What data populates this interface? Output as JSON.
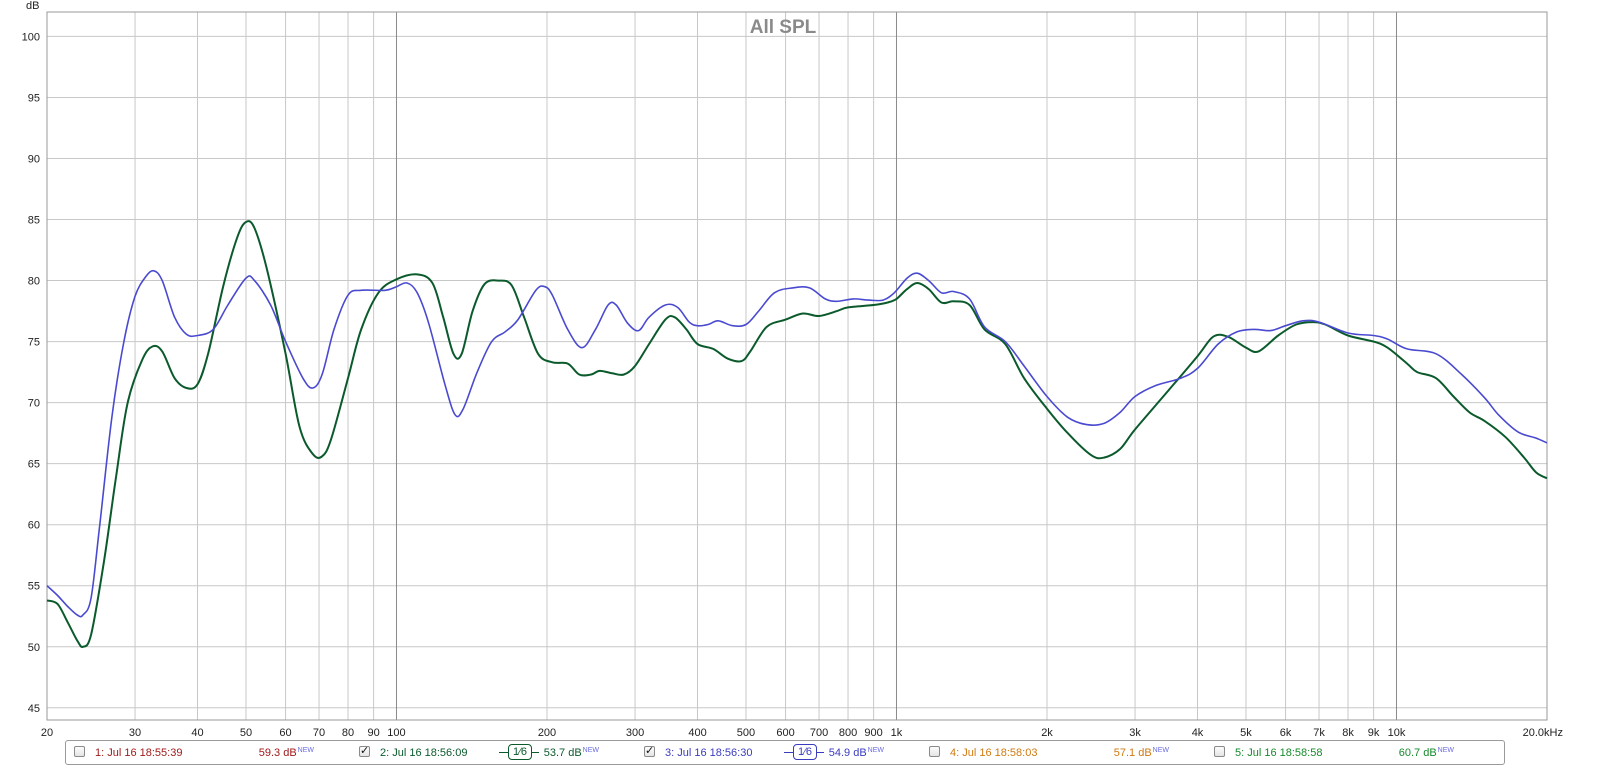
{
  "chart_data": {
    "type": "line",
    "title": "All SPL",
    "ylabel": "dB",
    "xunit": "kHz",
    "xscale": "log",
    "xlim": [
      20,
      20000
    ],
    "ylim": [
      44,
      102
    ],
    "grid": true,
    "x_ticks": [
      {
        "v": 20,
        "label": "20"
      },
      {
        "v": 30,
        "label": "30"
      },
      {
        "v": 40,
        "label": "40"
      },
      {
        "v": 50,
        "label": "50"
      },
      {
        "v": 60,
        "label": "60"
      },
      {
        "v": 70,
        "label": "70"
      },
      {
        "v": 80,
        "label": "80"
      },
      {
        "v": 90,
        "label": "90"
      },
      {
        "v": 100,
        "label": "100"
      },
      {
        "v": 200,
        "label": "200"
      },
      {
        "v": 300,
        "label": "300"
      },
      {
        "v": 400,
        "label": "400"
      },
      {
        "v": 500,
        "label": "500"
      },
      {
        "v": 600,
        "label": "600"
      },
      {
        "v": 700,
        "label": "700"
      },
      {
        "v": 800,
        "label": "800"
      },
      {
        "v": 900,
        "label": "900"
      },
      {
        "v": 1000,
        "label": "1k"
      },
      {
        "v": 2000,
        "label": "2k"
      },
      {
        "v": 3000,
        "label": "3k"
      },
      {
        "v": 4000,
        "label": "4k"
      },
      {
        "v": 5000,
        "label": "5k"
      },
      {
        "v": 6000,
        "label": "6k"
      },
      {
        "v": 7000,
        "label": "7k"
      },
      {
        "v": 8000,
        "label": "8k"
      },
      {
        "v": 9000,
        "label": "9k"
      },
      {
        "v": 10000,
        "label": "10k"
      },
      {
        "v": 20000,
        "label": "20.0kHz"
      }
    ],
    "y_ticks": [
      45,
      50,
      55,
      60,
      65,
      70,
      75,
      80,
      85,
      90,
      95,
      100
    ],
    "series": [
      {
        "name": "2: Jul 16 18:56:09",
        "color": "#0b5a2c",
        "points": [
          [
            20,
            53.8
          ],
          [
            21,
            53.5
          ],
          [
            22,
            52.0
          ],
          [
            23,
            50.5
          ],
          [
            23.6,
            50.0
          ],
          [
            24.5,
            51.0
          ],
          [
            26,
            57.0
          ],
          [
            27.5,
            64.0
          ],
          [
            29,
            70.0
          ],
          [
            31,
            73.5
          ],
          [
            32.5,
            74.6
          ],
          [
            34,
            74.2
          ],
          [
            36,
            72.0
          ],
          [
            38,
            71.2
          ],
          [
            40,
            71.5
          ],
          [
            42,
            74.0
          ],
          [
            45,
            79.5
          ],
          [
            48,
            83.5
          ],
          [
            50,
            84.8
          ],
          [
            52,
            84.3
          ],
          [
            55,
            81.0
          ],
          [
            60,
            74.0
          ],
          [
            64,
            68.0
          ],
          [
            68,
            65.8
          ],
          [
            71,
            65.6
          ],
          [
            74,
            67.0
          ],
          [
            80,
            72.0
          ],
          [
            85,
            76.0
          ],
          [
            92,
            79.0
          ],
          [
            100,
            80.1
          ],
          [
            110,
            80.5
          ],
          [
            118,
            79.8
          ],
          [
            124,
            77.0
          ],
          [
            130,
            74.0
          ],
          [
            135,
            74.0
          ],
          [
            142,
            77.5
          ],
          [
            150,
            79.7
          ],
          [
            160,
            80.0
          ],
          [
            170,
            79.6
          ],
          [
            180,
            77.0
          ],
          [
            192,
            74.0
          ],
          [
            205,
            73.3
          ],
          [
            220,
            73.2
          ],
          [
            232,
            72.3
          ],
          [
            245,
            72.3
          ],
          [
            255,
            72.6
          ],
          [
            270,
            72.4
          ],
          [
            285,
            72.3
          ],
          [
            300,
            73.0
          ],
          [
            320,
            74.8
          ],
          [
            345,
            76.8
          ],
          [
            360,
            77.0
          ],
          [
            380,
            76.0
          ],
          [
            400,
            74.8
          ],
          [
            430,
            74.4
          ],
          [
            460,
            73.6
          ],
          [
            490,
            73.4
          ],
          [
            510,
            74.2
          ],
          [
            550,
            76.2
          ],
          [
            600,
            76.8
          ],
          [
            650,
            77.3
          ],
          [
            700,
            77.1
          ],
          [
            760,
            77.5
          ],
          [
            800,
            77.8
          ],
          [
            900,
            78.0
          ],
          [
            960,
            78.2
          ],
          [
            1000,
            78.5
          ],
          [
            1050,
            79.3
          ],
          [
            1100,
            79.8
          ],
          [
            1160,
            79.3
          ],
          [
            1230,
            78.2
          ],
          [
            1300,
            78.3
          ],
          [
            1400,
            78.0
          ],
          [
            1500,
            76.0
          ],
          [
            1650,
            74.8
          ],
          [
            1800,
            72.0
          ],
          [
            2000,
            69.5
          ],
          [
            2200,
            67.5
          ],
          [
            2450,
            65.7
          ],
          [
            2600,
            65.5
          ],
          [
            2800,
            66.2
          ],
          [
            3000,
            67.8
          ],
          [
            3500,
            71.0
          ],
          [
            4000,
            73.8
          ],
          [
            4300,
            75.4
          ],
          [
            4600,
            75.4
          ],
          [
            5000,
            74.5
          ],
          [
            5300,
            74.2
          ],
          [
            5800,
            75.5
          ],
          [
            6300,
            76.4
          ],
          [
            6800,
            76.6
          ],
          [
            7200,
            76.4
          ],
          [
            8000,
            75.5
          ],
          [
            9000,
            75.0
          ],
          [
            9600,
            74.5
          ],
          [
            10500,
            73.2
          ],
          [
            11000,
            72.5
          ],
          [
            12000,
            72.0
          ],
          [
            13000,
            70.5
          ],
          [
            14000,
            69.2
          ],
          [
            15000,
            68.5
          ],
          [
            16500,
            67.2
          ],
          [
            18000,
            65.5
          ],
          [
            19000,
            64.3
          ],
          [
            20000,
            63.8
          ]
        ]
      },
      {
        "name": "3: Jul 16 18:56:30",
        "color": "#4a4ad0",
        "points": [
          [
            20,
            55.0
          ],
          [
            21,
            54.2
          ],
          [
            22,
            53.3
          ],
          [
            23,
            52.6
          ],
          [
            23.6,
            52.6
          ],
          [
            24.5,
            54.0
          ],
          [
            25.5,
            60.0
          ],
          [
            27,
            69.0
          ],
          [
            28.5,
            75.0
          ],
          [
            30,
            78.7
          ],
          [
            31.5,
            80.3
          ],
          [
            32.7,
            80.8
          ],
          [
            34,
            80.0
          ],
          [
            36,
            77.0
          ],
          [
            38,
            75.6
          ],
          [
            40,
            75.5
          ],
          [
            43,
            76.0
          ],
          [
            46,
            78.0
          ],
          [
            50,
            80.2
          ],
          [
            52,
            80.0
          ],
          [
            56,
            78.0
          ],
          [
            60,
            75.0
          ],
          [
            65,
            72.0
          ],
          [
            68,
            71.2
          ],
          [
            71,
            72.3
          ],
          [
            75,
            76.0
          ],
          [
            80,
            78.8
          ],
          [
            85,
            79.2
          ],
          [
            95,
            79.2
          ],
          [
            100,
            79.5
          ],
          [
            105,
            79.8
          ],
          [
            110,
            79.0
          ],
          [
            116,
            76.5
          ],
          [
            125,
            71.5
          ],
          [
            131,
            69.0
          ],
          [
            136,
            69.5
          ],
          [
            145,
            72.5
          ],
          [
            155,
            75.0
          ],
          [
            165,
            75.8
          ],
          [
            175,
            76.8
          ],
          [
            190,
            79.2
          ],
          [
            198,
            79.5
          ],
          [
            205,
            78.8
          ],
          [
            220,
            76.0
          ],
          [
            235,
            74.5
          ],
          [
            250,
            76.0
          ],
          [
            265,
            78.0
          ],
          [
            275,
            78.0
          ],
          [
            290,
            76.5
          ],
          [
            305,
            75.9
          ],
          [
            320,
            77.0
          ],
          [
            345,
            78.0
          ],
          [
            365,
            77.8
          ],
          [
            385,
            76.6
          ],
          [
            400,
            76.3
          ],
          [
            420,
            76.4
          ],
          [
            440,
            76.7
          ],
          [
            470,
            76.3
          ],
          [
            500,
            76.4
          ],
          [
            530,
            77.5
          ],
          [
            570,
            79.0
          ],
          [
            620,
            79.4
          ],
          [
            670,
            79.4
          ],
          [
            720,
            78.5
          ],
          [
            760,
            78.3
          ],
          [
            820,
            78.5
          ],
          [
            880,
            78.4
          ],
          [
            940,
            78.4
          ],
          [
            990,
            79.0
          ],
          [
            1050,
            80.2
          ],
          [
            1100,
            80.6
          ],
          [
            1160,
            80.0
          ],
          [
            1230,
            79.0
          ],
          [
            1300,
            79.1
          ],
          [
            1400,
            78.5
          ],
          [
            1500,
            76.2
          ],
          [
            1650,
            75.0
          ],
          [
            1800,
            73.0
          ],
          [
            2000,
            70.5
          ],
          [
            2200,
            68.8
          ],
          [
            2400,
            68.2
          ],
          [
            2600,
            68.3
          ],
          [
            2800,
            69.2
          ],
          [
            3000,
            70.5
          ],
          [
            3300,
            71.4
          ],
          [
            3700,
            72.0
          ],
          [
            4000,
            72.8
          ],
          [
            4400,
            74.8
          ],
          [
            4800,
            75.8
          ],
          [
            5200,
            76.0
          ],
          [
            5600,
            75.9
          ],
          [
            6000,
            76.3
          ],
          [
            6500,
            76.7
          ],
          [
            7000,
            76.6
          ],
          [
            8000,
            75.7
          ],
          [
            9000,
            75.5
          ],
          [
            9600,
            75.2
          ],
          [
            10500,
            74.4
          ],
          [
            12000,
            74.0
          ],
          [
            13500,
            72.3
          ],
          [
            15000,
            70.4
          ],
          [
            16000,
            69.0
          ],
          [
            17500,
            67.6
          ],
          [
            19000,
            67.1
          ],
          [
            20000,
            66.7
          ]
        ]
      }
    ]
  },
  "legend": {
    "items": [
      {
        "checked": false,
        "checkmark": "",
        "name": "1: Jul 16 18:55:39",
        "value": "59.3 dB",
        "badge": "NEW",
        "color": "#a11a1a"
      },
      {
        "checked": true,
        "checkmark": "✓",
        "name": "2: Jul 16 18:56:09",
        "value": "53.7 dB",
        "badge": "NEW",
        "color": "#0b5a2c",
        "smoothing": "1⁄6"
      },
      {
        "checked": true,
        "checkmark": "✓",
        "name": "3: Jul 16 18:56:30",
        "value": "54.9 dB",
        "badge": "NEW",
        "color": "#3b3bc0",
        "smoothing": "1⁄6"
      },
      {
        "checked": false,
        "checkmark": "",
        "name": "4: Jul 16 18:58:03",
        "value": "57.1 dB",
        "badge": "NEW",
        "color": "#d07a10"
      },
      {
        "checked": false,
        "checkmark": "",
        "name": "5: Jul 16 18:58:58",
        "value": "60.7 dB",
        "badge": "NEW",
        "color": "#168a2c"
      }
    ]
  }
}
